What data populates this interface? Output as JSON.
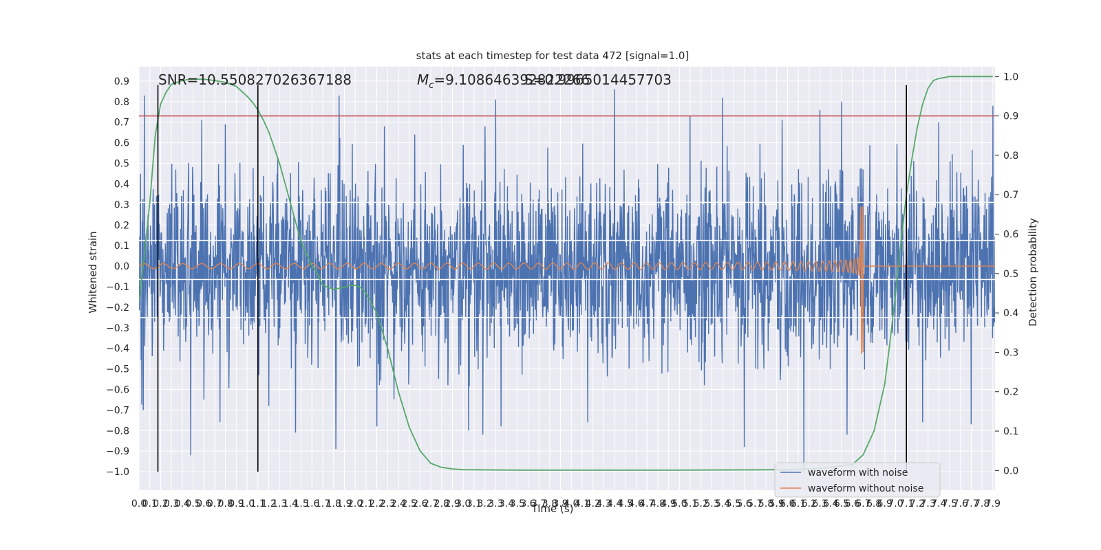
{
  "chart_data": {
    "type": "line",
    "title": "stats at each timestep for test data 472 [signal=1.0]",
    "xlabel": "Time (s)",
    "ylabel": "Whitened strain",
    "y2label": "Detection probability",
    "xlim": [
      0.0,
      7.92
    ],
    "ylim": [
      -1.09,
      0.97
    ],
    "y2lim": [
      -0.05,
      1.025
    ],
    "grid": true,
    "x_ticks": [
      "0.0",
      "0.1",
      "0.2",
      "0.3",
      "0.4",
      "0.5",
      "0.6",
      "0.7",
      "0.8",
      "0.9",
      "1.0",
      "1.1",
      "1.2",
      "1.3",
      "1.4",
      "1.5",
      "1.6",
      "1.7",
      "1.8",
      "1.9",
      "2.0",
      "2.1",
      "2.2",
      "2.3",
      "2.4",
      "2.5",
      "2.6",
      "2.7",
      "2.8",
      "2.9",
      "3.0",
      "3.1",
      "3.2",
      "3.3",
      "3.4",
      "3.5",
      "3.6",
      "3.7",
      "3.8",
      "3.9",
      "4.0",
      "4.1",
      "4.2",
      "4.3",
      "4.4",
      "4.5",
      "4.6",
      "4.7",
      "4.8",
      "4.9",
      "5.0",
      "5.1",
      "5.2",
      "5.3",
      "5.4",
      "5.5",
      "5.6",
      "5.7",
      "5.8",
      "5.9",
      "6.0",
      "6.1",
      "6.2",
      "6.3",
      "6.4",
      "6.5",
      "6.6",
      "6.7",
      "6.8",
      "6.9",
      "7.0",
      "7.1",
      "7.2",
      "7.3",
      "7.4",
      "7.5",
      "7.6",
      "7.7",
      "7.8",
      "7.9"
    ],
    "y_ticks": [
      "−1.0",
      "−0.9",
      "−0.8",
      "−0.7",
      "−0.6",
      "−0.5",
      "−0.4",
      "−0.3",
      "−0.2",
      "−0.1",
      "0.0",
      "0.1",
      "0.2",
      "0.3",
      "0.4",
      "0.5",
      "0.6",
      "0.7",
      "0.8",
      "0.9"
    ],
    "y2_ticks": [
      "0.0",
      "0.1",
      "0.2",
      "0.3",
      "0.4",
      "0.5",
      "0.6",
      "0.7",
      "0.8",
      "0.9",
      "1.0"
    ],
    "annotations": {
      "snr": "SNR=10.550827026367188",
      "mc_symbol": "M",
      "mc_sub": "c",
      "mc_value": "=9.108646392822266",
      "overlap": "S=0.9965014457703"
    },
    "threshold": {
      "value": 0.9,
      "axis": "right",
      "color": "#c44e52"
    },
    "vlines_x": [
      0.175,
      1.1,
      7.1
    ],
    "vlines_ylim": [
      -1.0,
      0.88
    ],
    "white_hlines_y": [
      -0.25,
      -0.065,
      0.125,
      0.31
    ],
    "series": [
      {
        "name": "waveform with noise",
        "color": "#4c72b0",
        "noise_sigma": 0.22,
        "peaks": [
          [
            0.05,
            0.83
          ],
          [
            0.58,
            0.71
          ],
          [
            0.8,
            0.69
          ],
          [
            1.85,
            0.83
          ],
          [
            2.27,
            0.68
          ],
          [
            3.2,
            0.68
          ],
          [
            3.3,
            0.81
          ],
          [
            4.15,
            0.85
          ],
          [
            4.4,
            0.86
          ],
          [
            5.1,
            0.73
          ],
          [
            5.4,
            0.82
          ],
          [
            5.95,
            0.71
          ],
          [
            6.3,
            0.76
          ],
          [
            6.5,
            0.8
          ],
          [
            7.4,
            0.7
          ],
          [
            7.9,
            0.78
          ]
        ],
        "troughs": [
          [
            0.04,
            -0.7
          ],
          [
            0.48,
            -0.92
          ],
          [
            0.6,
            -0.65
          ],
          [
            0.75,
            -0.76
          ],
          [
            1.2,
            -0.68
          ],
          [
            1.45,
            -0.81
          ],
          [
            1.82,
            -0.89
          ],
          [
            2.2,
            -0.78
          ],
          [
            3.05,
            -0.8
          ],
          [
            3.18,
            -0.82
          ],
          [
            3.35,
            -0.78
          ],
          [
            4.15,
            -0.76
          ],
          [
            5.6,
            -0.88
          ],
          [
            6.15,
            -1.0
          ],
          [
            6.55,
            -0.82
          ],
          [
            7.25,
            -0.76
          ],
          [
            7.7,
            -0.77
          ]
        ]
      },
      {
        "name": "waveform without noise",
        "color": "#dd8452",
        "chirp": {
          "t_merger": 6.7,
          "amp_start": 0.012,
          "amp_peak": 0.29,
          "amp_trough": -0.43,
          "cycles_per_s_start": 5.5
        }
      },
      {
        "name": "detection probability",
        "axis": "right",
        "color": "#55a868",
        "x": [
          0.0,
          0.05,
          0.1,
          0.15,
          0.2,
          0.25,
          0.3,
          0.35,
          0.4,
          0.45,
          0.5,
          0.6,
          0.7,
          0.8,
          0.9,
          1.0,
          1.05,
          1.1,
          1.15,
          1.2,
          1.3,
          1.4,
          1.5,
          1.55,
          1.6,
          1.65,
          1.7,
          1.8,
          1.9,
          1.95,
          2.0,
          2.05,
          2.1,
          2.2,
          2.3,
          2.4,
          2.5,
          2.6,
          2.7,
          2.8,
          2.9,
          3.0,
          3.5,
          4.0,
          5.0,
          6.0,
          6.3,
          6.6,
          6.7,
          6.8,
          6.9,
          6.95,
          7.0,
          7.05,
          7.1,
          7.15,
          7.2,
          7.25,
          7.3,
          7.35,
          7.4,
          7.5,
          7.6,
          7.7,
          7.9
        ],
        "y": [
          0.43,
          0.55,
          0.68,
          0.85,
          0.93,
          0.96,
          0.98,
          0.985,
          0.99,
          0.992,
          0.993,
          0.993,
          0.99,
          0.985,
          0.975,
          0.95,
          0.935,
          0.915,
          0.89,
          0.86,
          0.78,
          0.68,
          0.58,
          0.55,
          0.52,
          0.5,
          0.47,
          0.46,
          0.465,
          0.47,
          0.47,
          0.465,
          0.45,
          0.4,
          0.31,
          0.2,
          0.11,
          0.05,
          0.018,
          0.008,
          0.004,
          0.002,
          0.001,
          0.001,
          0.001,
          0.002,
          0.005,
          0.015,
          0.04,
          0.1,
          0.22,
          0.33,
          0.45,
          0.58,
          0.7,
          0.79,
          0.87,
          0.93,
          0.97,
          0.99,
          0.995,
          1.0,
          1.0,
          1.0,
          1.0
        ]
      }
    ],
    "legend": {
      "position": "lower-right",
      "entries": [
        {
          "label": "waveform with noise",
          "color": "#4c72b0"
        },
        {
          "label": "waveform without noise",
          "color": "#dd8452"
        }
      ]
    }
  }
}
